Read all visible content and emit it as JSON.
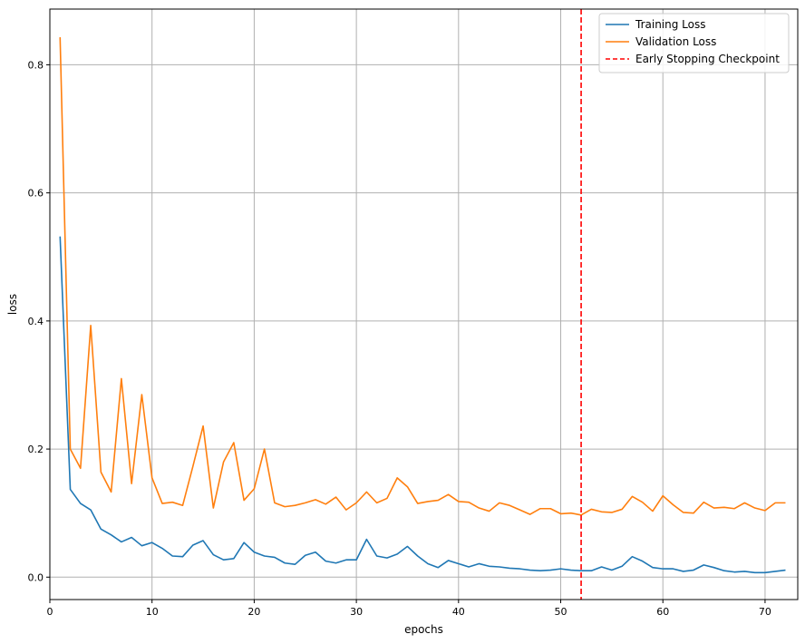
{
  "chart_data": {
    "type": "line",
    "title": "",
    "xlabel": "epochs",
    "ylabel": "loss",
    "xlim": [
      0,
      73.2
    ],
    "ylim": [
      -0.035,
      0.887
    ],
    "xticks": [
      0,
      10,
      20,
      30,
      40,
      50,
      60,
      70
    ],
    "yticks": [
      0.0,
      0.2,
      0.4,
      0.6,
      0.8
    ],
    "grid": true,
    "legend_position": "top-right",
    "x": [
      1,
      2,
      3,
      4,
      5,
      6,
      7,
      8,
      9,
      10,
      11,
      12,
      13,
      14,
      15,
      16,
      17,
      18,
      19,
      20,
      21,
      22,
      23,
      24,
      25,
      26,
      27,
      28,
      29,
      30,
      31,
      32,
      33,
      34,
      35,
      36,
      37,
      38,
      39,
      40,
      41,
      42,
      43,
      44,
      45,
      46,
      47,
      48,
      49,
      50,
      51,
      52,
      53,
      54,
      55,
      56,
      57,
      58,
      59,
      60,
      61,
      62,
      63,
      64,
      65,
      66,
      67,
      68,
      69,
      70,
      71,
      72
    ],
    "series": [
      {
        "name": "Training Loss",
        "color": "#1f77b4",
        "values": [
          0.532,
          0.137,
          0.115,
          0.105,
          0.075,
          0.066,
          0.055,
          0.062,
          0.049,
          0.054,
          0.045,
          0.033,
          0.032,
          0.05,
          0.057,
          0.035,
          0.027,
          0.029,
          0.054,
          0.039,
          0.033,
          0.031,
          0.022,
          0.02,
          0.034,
          0.039,
          0.025,
          0.022,
          0.027,
          0.027,
          0.059,
          0.033,
          0.03,
          0.036,
          0.048,
          0.033,
          0.021,
          0.015,
          0.026,
          0.021,
          0.016,
          0.021,
          0.017,
          0.016,
          0.014,
          0.013,
          0.011,
          0.01,
          0.011,
          0.013,
          0.011,
          0.01,
          0.01,
          0.016,
          0.011,
          0.017,
          0.032,
          0.025,
          0.015,
          0.013,
          0.013,
          0.009,
          0.011,
          0.019,
          0.015,
          0.01,
          0.008,
          0.009,
          0.007,
          0.007,
          0.009,
          0.011
        ]
      },
      {
        "name": "Validation Loss",
        "color": "#ff7f0e",
        "values": [
          0.843,
          0.2,
          0.17,
          0.393,
          0.164,
          0.133,
          0.31,
          0.146,
          0.285,
          0.155,
          0.115,
          0.117,
          0.112,
          0.173,
          0.236,
          0.108,
          0.18,
          0.21,
          0.12,
          0.138,
          0.2,
          0.116,
          0.11,
          0.112,
          0.116,
          0.121,
          0.114,
          0.125,
          0.105,
          0.116,
          0.133,
          0.116,
          0.123,
          0.155,
          0.141,
          0.115,
          0.118,
          0.12,
          0.129,
          0.118,
          0.117,
          0.108,
          0.103,
          0.116,
          0.112,
          0.105,
          0.098,
          0.107,
          0.107,
          0.099,
          0.1,
          0.097,
          0.106,
          0.102,
          0.101,
          0.106,
          0.126,
          0.117,
          0.103,
          0.127,
          0.113,
          0.101,
          0.1,
          0.117,
          0.108,
          0.109,
          0.107,
          0.116,
          0.108,
          0.104,
          0.116,
          0.116
        ]
      }
    ],
    "annotations": [
      {
        "type": "vline",
        "x": 52,
        "name": "Early Stopping Checkpoint",
        "color": "#ff0000",
        "style": "dashed"
      }
    ],
    "grid_color": "#b0b0b0"
  }
}
